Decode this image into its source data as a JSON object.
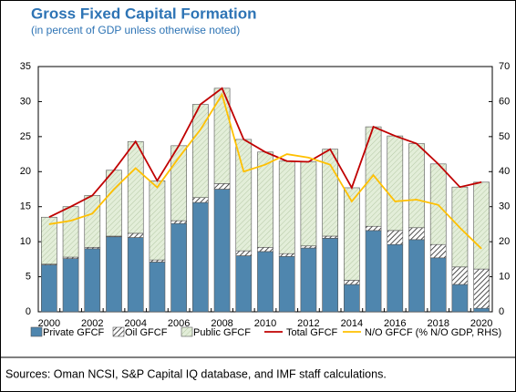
{
  "chart_data": {
    "type": "bar",
    "stacked": true,
    "title": "Gross Fixed Capital Formation",
    "subtitle": "(in percent of GDP unless otherwise noted)",
    "source": "Sources: Oman NCSI, S&P Capital IQ database, and IMF staff calculations.",
    "categories": [
      "2000",
      null,
      "2002",
      null,
      "2004",
      null,
      "2006",
      null,
      "2008",
      null,
      "2010",
      null,
      "2012",
      null,
      "2014",
      null,
      "2016",
      null,
      "2018",
      null,
      "2020"
    ],
    "ylim": [
      0,
      35
    ],
    "yticks": [
      0,
      5,
      10,
      15,
      20,
      25,
      30,
      35
    ],
    "y2lim": [
      0,
      70
    ],
    "y2ticks": [
      0,
      10,
      20,
      30,
      40,
      50,
      60,
      70
    ],
    "series": [
      {
        "name": "Private GFCF",
        "type": "bar",
        "color": "#4f86ae",
        "pattern": "solid",
        "values": [
          6.7,
          7.6,
          9.0,
          10.7,
          10.6,
          7.1,
          12.6,
          15.6,
          17.5,
          8.0,
          8.6,
          7.9,
          9.1,
          10.5,
          3.9,
          11.6,
          9.6,
          10.3,
          7.7,
          3.9,
          0.5
        ]
      },
      {
        "name": "Oil GFCF",
        "type": "bar",
        "color": "#ffffff",
        "pattern": "hatch",
        "values": [
          0.1,
          0.2,
          0.2,
          0.1,
          0.6,
          0.3,
          0.4,
          0.7,
          0.8,
          0.7,
          0.6,
          0.4,
          0.3,
          0.3,
          0.6,
          0.6,
          2.0,
          1.7,
          1.9,
          2.5,
          5.6
        ]
      },
      {
        "name": "Public GFCF",
        "type": "bar",
        "color": "#e3eed9",
        "pattern": "hatch",
        "values": [
          6.7,
          7.2,
          7.4,
          9.4,
          13.1,
          11.3,
          10.7,
          13.3,
          13.6,
          15.9,
          13.6,
          13.2,
          12.0,
          12.4,
          13.2,
          14.2,
          13.5,
          12.0,
          11.5,
          11.4,
          12.4
        ]
      },
      {
        "name": "Total GFCF",
        "type": "line",
        "color": "#c00000",
        "values": [
          13.5,
          15.0,
          16.6,
          20.2,
          24.3,
          18.7,
          23.7,
          29.6,
          31.9,
          24.6,
          22.8,
          21.5,
          21.4,
          23.2,
          17.7,
          26.4,
          25.1,
          24.0,
          21.1,
          17.8,
          18.5
        ]
      },
      {
        "name": "N/O GFCF (% N/O GDP, RHS)",
        "type": "line",
        "axis": "y2",
        "color": "#ffc000",
        "values": [
          25,
          26,
          28,
          35,
          41,
          35.5,
          44,
          52,
          62,
          40,
          42,
          45,
          44,
          42,
          31.5,
          39,
          31.5,
          32,
          30.5,
          24,
          18
        ]
      }
    ]
  }
}
